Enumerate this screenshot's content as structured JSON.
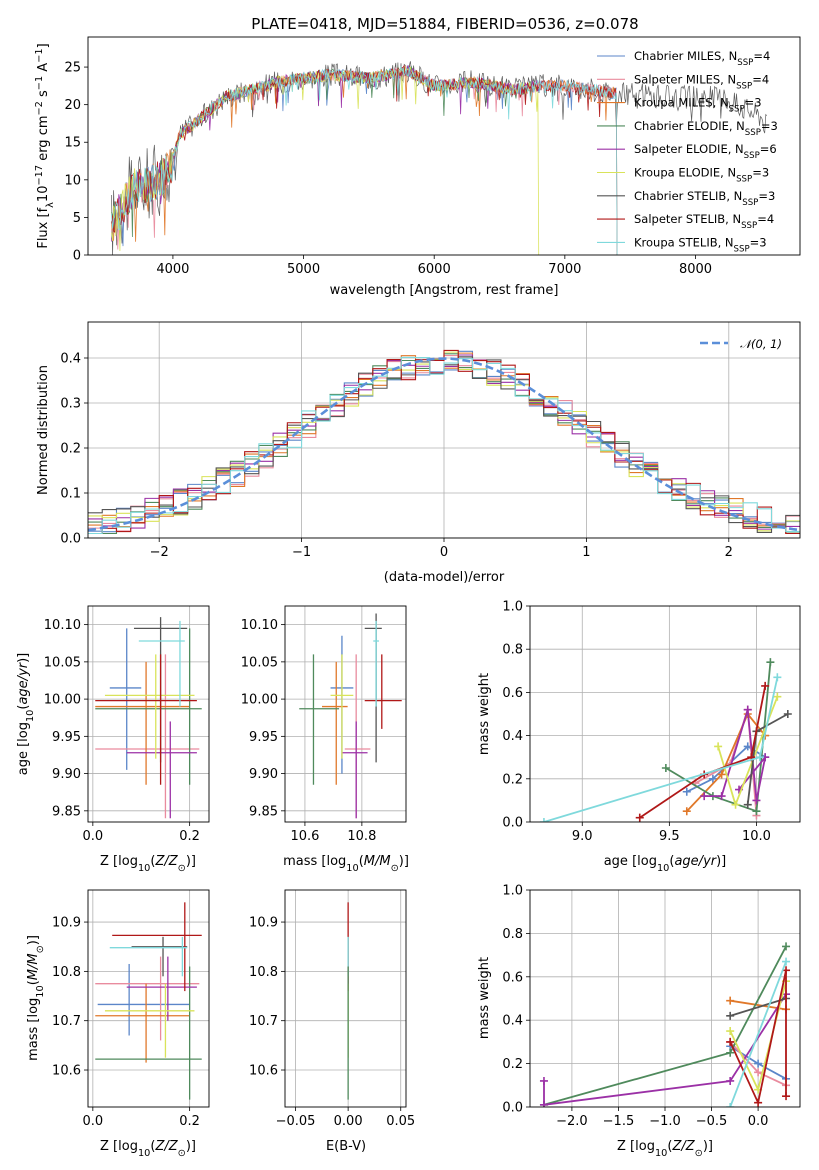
{
  "figure": {
    "title": "PLATE=0418, MJD=51884, FIBERID=0536, z=0.078"
  },
  "colors": {
    "Chabrier MILES": "#5b86c9",
    "Salpeter MILES": "#e98b9e",
    "Kroupa MILES": "#e0782a",
    "Chabrier ELODIE": "#4f8a5c",
    "Salpeter ELODIE": "#9b30a6",
    "Kroupa ELODIE": "#d9e35a",
    "Chabrier STELIB": "#555555",
    "Salpeter STELIB": "#b01818",
    "Kroupa STELIB": "#7fd9dc",
    "gaussian": "#5b8fd9",
    "grid": "#b0b0b0"
  },
  "legend_entries": [
    {
      "name": "Chabrier MILES",
      "ssp": "4"
    },
    {
      "name": "Salpeter MILES",
      "ssp": "4"
    },
    {
      "name": "Kroupa MILES",
      "ssp": "3"
    },
    {
      "name": "Chabrier ELODIE",
      "ssp": "3"
    },
    {
      "name": "Salpeter ELODIE",
      "ssp": "6"
    },
    {
      "name": "Kroupa ELODIE",
      "ssp": "3"
    },
    {
      "name": "Chabrier STELIB",
      "ssp": "3"
    },
    {
      "name": "Salpeter STELIB",
      "ssp": "4"
    },
    {
      "name": "Kroupa STELIB",
      "ssp": "3"
    }
  ],
  "chart_data": [
    {
      "id": "spectrum",
      "type": "line",
      "xlabel": "wavelength [Angstrom, rest frame]",
      "ylabel": "Flux [f_λ 10^-17 erg cm^-2 s^-1 A^-1]",
      "xlim": [
        3350,
        8800
      ],
      "ylim": [
        0,
        29
      ],
      "xticks": [
        4000,
        5000,
        6000,
        7000,
        8000
      ],
      "yticks": [
        0,
        5,
        10,
        15,
        20,
        25
      ],
      "continuum": [
        [
          3530,
          4
        ],
        [
          3700,
          9
        ],
        [
          3900,
          10
        ],
        [
          3990,
          12
        ],
        [
          4050,
          16
        ],
        [
          4200,
          18
        ],
        [
          4400,
          21
        ],
        [
          4600,
          22
        ],
        [
          4800,
          23
        ],
        [
          5000,
          23.5
        ],
        [
          5200,
          24
        ],
        [
          5500,
          23.5
        ],
        [
          5800,
          24.5
        ],
        [
          6000,
          22.5
        ],
        [
          6300,
          23
        ],
        [
          6600,
          22
        ],
        [
          6800,
          22.5
        ],
        [
          7000,
          22.5
        ],
        [
          7200,
          22
        ],
        [
          7400,
          21.5
        ],
        [
          7800,
          21
        ],
        [
          8200,
          21
        ],
        [
          8500,
          18.5
        ],
        [
          8550,
          17
        ]
      ],
      "drops": [
        {
          "series": "Kroupa ELODIE",
          "x": 6800
        },
        {
          "series": "Salpeter STELIB",
          "x": 7400
        },
        {
          "series": "Kroupa STELIB",
          "x": 7400
        }
      ],
      "legend_position": "upper-right"
    },
    {
      "id": "residuals",
      "type": "histogram",
      "xlabel": "(data-model)/error",
      "ylabel": "Normed distribution",
      "xlim": [
        -2.5,
        2.5
      ],
      "ylim": [
        0,
        0.48
      ],
      "xticks": [
        -2,
        -1,
        0,
        1,
        2
      ],
      "yticks": [
        0.0,
        0.1,
        0.2,
        0.3,
        0.4
      ],
      "bin_width": 0.1,
      "grid": true,
      "legend_label": "N(0,1)",
      "legend_position": "upper-right"
    },
    {
      "id": "age-vs-Z",
      "type": "errorbar",
      "xlabel": "Z [log10(Z/Z⊙)]",
      "ylabel": "age [log10(age/yr)]",
      "xlim": [
        -0.01,
        0.24
      ],
      "ylim": [
        9.835,
        10.125
      ],
      "xticks": [
        0.0,
        0.2
      ],
      "yticks": [
        9.85,
        9.9,
        9.95,
        10.0,
        10.05,
        10.1
      ],
      "grid": true,
      "points": [
        {
          "series": "Chabrier MILES",
          "x": 0.07,
          "xerr": [
            0.035,
            0.1
          ],
          "y": 10.015,
          "yerr": [
            9.905,
            10.095
          ]
        },
        {
          "series": "Salpeter MILES",
          "x": 0.15,
          "xerr": [
            0.005,
            0.22
          ],
          "y": 9.933,
          "yerr": [
            9.84,
            10.06
          ]
        },
        {
          "series": "Kroupa MILES",
          "x": 0.11,
          "xerr": [
            0.005,
            0.2
          ],
          "y": 9.99,
          "yerr": [
            9.885,
            10.05
          ]
        },
        {
          "series": "Chabrier ELODIE",
          "x": 0.2,
          "xerr": [
            0.005,
            0.225
          ],
          "y": 9.987,
          "yerr": [
            9.885,
            10.095
          ]
        },
        {
          "series": "Salpeter ELODIE",
          "x": 0.16,
          "xerr": [
            0.07,
            0.215
          ],
          "y": 9.928,
          "yerr": [
            9.84,
            9.97
          ]
        },
        {
          "series": "Kroupa ELODIE",
          "x": 0.13,
          "xerr": [
            0.025,
            0.21
          ],
          "y": 10.005,
          "yerr": [
            9.92,
            10.06
          ]
        },
        {
          "series": "Chabrier STELIB",
          "x": 0.14,
          "xerr": [
            0.085,
            0.195
          ],
          "y": 10.095,
          "yerr": [
            9.915,
            10.11
          ]
        },
        {
          "series": "Salpeter STELIB",
          "x": 0.14,
          "xerr": [
            0.005,
            0.215
          ],
          "y": 9.998,
          "yerr": [
            9.885,
            10.06
          ]
        },
        {
          "series": "Kroupa STELIB",
          "x": 0.18,
          "xerr": [
            0.095,
            0.19
          ],
          "y": 10.078,
          "yerr": [
            9.99,
            10.105
          ]
        }
      ]
    },
    {
      "id": "age-vs-mass",
      "type": "errorbar",
      "xlabel": "mass [log10(M/M⊙)]",
      "ylabel": "",
      "xlim": [
        10.53,
        10.955
      ],
      "ylim": [
        9.835,
        10.125
      ],
      "xticks": [
        10.6,
        10.8
      ],
      "yticks": [
        9.85,
        9.9,
        9.95,
        10.0,
        10.05,
        10.1
      ],
      "grid": true,
      "points": [
        {
          "series": "Chabrier MILES",
          "x": 10.73,
          "xerr": [
            10.69,
            10.77
          ],
          "y": 10.015,
          "yerr": [
            9.9,
            10.085
          ]
        },
        {
          "series": "Salpeter MILES",
          "x": 10.78,
          "xerr": [
            10.74,
            10.83
          ],
          "y": 9.933,
          "yerr": [
            9.84,
            10.06
          ]
        },
        {
          "series": "Kroupa MILES",
          "x": 10.71,
          "xerr": [
            10.66,
            10.75
          ],
          "y": 9.99,
          "yerr": [
            9.885,
            10.05
          ]
        },
        {
          "series": "Chabrier ELODIE",
          "x": 10.63,
          "xerr": [
            10.58,
            10.72
          ],
          "y": 9.987,
          "yerr": [
            9.885,
            10.06
          ]
        },
        {
          "series": "Salpeter ELODIE",
          "x": 10.78,
          "xerr": [
            10.73,
            10.82
          ],
          "y": 9.928,
          "yerr": [
            9.84,
            9.97
          ]
        },
        {
          "series": "Kroupa ELODIE",
          "x": 10.73,
          "xerr": [
            10.69,
            10.77
          ],
          "y": 10.005,
          "yerr": [
            9.92,
            10.06
          ]
        },
        {
          "series": "Chabrier STELIB",
          "x": 10.85,
          "xerr": [
            10.81,
            10.87
          ],
          "y": 10.095,
          "yerr": [
            9.915,
            10.115
          ]
        },
        {
          "series": "Salpeter STELIB",
          "x": 10.87,
          "xerr": [
            10.81,
            10.94
          ],
          "y": 9.998,
          "yerr": [
            9.96,
            10.06
          ]
        },
        {
          "series": "Kroupa STELIB",
          "x": 10.85,
          "xerr": [
            10.84,
            10.86
          ],
          "y": 10.078,
          "yerr": [
            9.99,
            10.105
          ]
        }
      ]
    },
    {
      "id": "weight-vs-age",
      "type": "line",
      "xlabel": "age [log10(age/yr)]",
      "ylabel": "mass weight",
      "xlim": [
        8.7,
        10.25
      ],
      "ylim": [
        0,
        1
      ],
      "xticks": [
        9.0,
        9.5,
        10.0
      ],
      "yticks": [
        0.0,
        0.2,
        0.4,
        0.6,
        0.8,
        1.0
      ],
      "grid": true,
      "series": [
        {
          "name": "Chabrier MILES",
          "points": [
            [
              9.6,
              0.14
            ],
            [
              9.75,
              0.2
            ],
            [
              9.95,
              0.35
            ],
            [
              10.05,
              0.3
            ]
          ]
        },
        {
          "name": "Salpeter MILES",
          "points": [
            [
              9.65,
              0.18
            ],
            [
              9.85,
              0.27
            ],
            [
              9.95,
              0.52
            ],
            [
              10.0,
              0.03
            ]
          ]
        },
        {
          "name": "Kroupa MILES",
          "points": [
            [
              9.6,
              0.05
            ],
            [
              9.8,
              0.22
            ],
            [
              9.95,
              0.5
            ],
            [
              10.05,
              0.4
            ]
          ]
        },
        {
          "name": "Chabrier ELODIE",
          "points": [
            [
              9.48,
              0.25
            ],
            [
              9.75,
              0.12
            ],
            [
              10.0,
              0.05
            ],
            [
              10.08,
              0.74
            ]
          ]
        },
        {
          "name": "Salpeter ELODIE",
          "points": [
            [
              9.7,
              0.12
            ],
            [
              9.8,
              0.12
            ],
            [
              9.95,
              0.52
            ],
            [
              10.0,
              0.1
            ],
            [
              10.05,
              0.3
            ],
            [
              9.9,
              0.15
            ]
          ]
        },
        {
          "name": "Kroupa ELODIE",
          "points": [
            [
              9.78,
              0.35
            ],
            [
              9.88,
              0.08
            ],
            [
              10.12,
              0.58
            ]
          ]
        },
        {
          "name": "Chabrier STELIB",
          "points": [
            [
              9.95,
              0.08
            ],
            [
              10.0,
              0.42
            ],
            [
              10.18,
              0.5
            ]
          ]
        },
        {
          "name": "Salpeter STELIB",
          "points": [
            [
              9.33,
              0.02
            ],
            [
              9.7,
              0.22
            ],
            [
              9.97,
              0.3
            ],
            [
              10.05,
              0.63
            ]
          ]
        },
        {
          "name": "Kroupa STELIB",
          "points": [
            [
              8.78,
              0.0
            ],
            [
              10.02,
              0.3
            ],
            [
              10.12,
              0.67
            ]
          ]
        }
      ]
    },
    {
      "id": "mass-vs-Z",
      "type": "errorbar",
      "xlabel": "Z [log10(Z/Z⊙)]",
      "ylabel": "mass [log10(M/M⊙)]",
      "xlim": [
        -0.01,
        0.24
      ],
      "ylim": [
        10.525,
        10.965
      ],
      "xticks": [
        0.0,
        0.2
      ],
      "yticks": [
        10.6,
        10.7,
        10.8,
        10.9
      ],
      "grid": true,
      "points": [
        {
          "series": "Chabrier MILES",
          "x": 0.075,
          "xerr": [
            0.01,
            0.2
          ],
          "y": 10.733,
          "yerr": [
            10.67,
            10.815
          ]
        },
        {
          "series": "Salpeter MILES",
          "x": 0.14,
          "xerr": [
            0.005,
            0.22
          ],
          "y": 10.775,
          "yerr": [
            10.66,
            10.83
          ]
        },
        {
          "series": "Kroupa MILES",
          "x": 0.11,
          "xerr": [
            0.005,
            0.2
          ],
          "y": 10.71,
          "yerr": [
            10.615,
            10.775
          ]
        },
        {
          "series": "Chabrier ELODIE",
          "x": 0.2,
          "xerr": [
            0.005,
            0.225
          ],
          "y": 10.622,
          "yerr": [
            10.54,
            10.81
          ]
        },
        {
          "series": "Salpeter ELODIE",
          "x": 0.155,
          "xerr": [
            0.07,
            0.215
          ],
          "y": 10.768,
          "yerr": [
            10.7,
            10.83
          ]
        },
        {
          "series": "Kroupa ELODIE",
          "x": 0.15,
          "xerr": [
            0.025,
            0.21
          ],
          "y": 10.72,
          "yerr": [
            10.625,
            10.775
          ]
        },
        {
          "series": "Chabrier STELIB",
          "x": 0.145,
          "xerr": [
            0.08,
            0.195
          ],
          "y": 10.85,
          "yerr": [
            10.79,
            10.87
          ]
        },
        {
          "series": "Salpeter STELIB",
          "x": 0.19,
          "xerr": [
            0.04,
            0.225
          ],
          "y": 10.873,
          "yerr": [
            10.76,
            10.94
          ]
        },
        {
          "series": "Kroupa STELIB",
          "x": 0.185,
          "xerr": [
            0.035,
            0.195
          ],
          "y": 10.848,
          "yerr": [
            10.79,
            10.87
          ]
        }
      ]
    },
    {
      "id": "mass-vs-ebv",
      "type": "errorbar",
      "xlabel": "E(B-V)",
      "ylabel": "",
      "xlim": [
        -0.06,
        0.055
      ],
      "ylim": [
        10.525,
        10.965
      ],
      "xticks": [
        -0.05,
        0.0,
        0.05
      ],
      "yticks": [
        10.6,
        10.7,
        10.8,
        10.9
      ],
      "grid": true,
      "points": [
        {
          "series": "Salpeter STELIB",
          "x": 0.0,
          "y": 10.873,
          "yerr": [
            10.76,
            10.94
          ]
        },
        {
          "series": "Kroupa STELIB",
          "x": 0.0,
          "y": 10.848,
          "yerr": [
            10.79,
            10.87
          ]
        },
        {
          "series": "Kroupa ELODIE",
          "x": 0.0,
          "y": 10.72,
          "yerr": [
            10.625,
            10.775
          ]
        },
        {
          "series": "Chabrier ELODIE",
          "x": 0.0,
          "y": 10.622,
          "yerr": [
            10.54,
            10.81
          ]
        }
      ]
    },
    {
      "id": "weight-vs-Z",
      "type": "line",
      "xlabel": "Z [log10(Z/Z⊙)]",
      "ylabel": "mass weight",
      "xlim": [
        -2.45,
        0.45
      ],
      "ylim": [
        0,
        1
      ],
      "xticks": [
        -2.0,
        -1.5,
        -1.0,
        -0.5,
        0.0
      ],
      "yticks": [
        0.0,
        0.2,
        0.4,
        0.6,
        0.8,
        1.0
      ],
      "grid": true,
      "series": [
        {
          "name": "Chabrier MILES",
          "points": [
            [
              -0.3,
              0.28
            ],
            [
              0.0,
              0.2
            ],
            [
              0.3,
              0.13
            ]
          ]
        },
        {
          "name": "Salpeter MILES",
          "points": [
            [
              -0.3,
              0.3
            ],
            [
              0.0,
              0.16
            ],
            [
              0.3,
              0.1
            ]
          ]
        },
        {
          "name": "Kroupa MILES",
          "points": [
            [
              -0.3,
              0.49
            ],
            [
              0.3,
              0.45
            ]
          ]
        },
        {
          "name": "Chabrier ELODIE",
          "points": [
            [
              -2.3,
              0.01
            ],
            [
              -0.3,
              0.25
            ],
            [
              0.3,
              0.74
            ]
          ]
        },
        {
          "name": "Salpeter ELODIE",
          "points": [
            [
              -2.3,
              0.12
            ],
            [
              -2.3,
              0.01
            ],
            [
              -0.3,
              0.12
            ],
            [
              0.3,
              0.52
            ]
          ]
        },
        {
          "name": "Kroupa ELODIE",
          "points": [
            [
              -0.3,
              0.35
            ],
            [
              0.0,
              0.08
            ],
            [
              0.3,
              0.58
            ]
          ]
        },
        {
          "name": "Chabrier STELIB",
          "points": [
            [
              -0.3,
              0.42
            ],
            [
              0.3,
              0.5
            ]
          ]
        },
        {
          "name": "Salpeter STELIB",
          "points": [
            [
              -0.3,
              0.3
            ],
            [
              0.0,
              0.02
            ],
            [
              0.3,
              0.63
            ],
            [
              0.3,
              0.05
            ]
          ]
        },
        {
          "name": "Kroupa STELIB",
          "points": [
            [
              -0.3,
              0.0
            ],
            [
              0.3,
              0.67
            ]
          ]
        }
      ]
    }
  ]
}
